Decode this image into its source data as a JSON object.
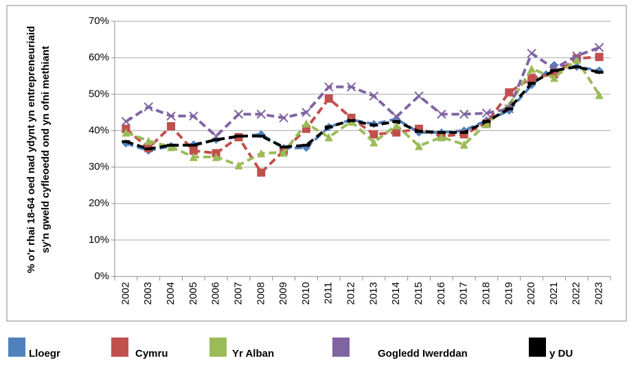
{
  "chart_data": {
    "type": "line",
    "ylabel": "% o'r rhai 18-64 oed nad ydynt yn entrepreneuriaid sy'n gweld cyfleoedd ond yn ofni methiant",
    "categories": [
      "2002",
      "2003",
      "2004",
      "2005",
      "2006",
      "2007",
      "2008",
      "2009",
      "2010",
      "2011",
      "2012",
      "2013",
      "2014",
      "2015",
      "2016",
      "2017",
      "2018",
      "2019",
      "2020",
      "2021",
      "2022",
      "2023"
    ],
    "series": [
      {
        "name": "Lloegr",
        "color": "#4f81bd",
        "marker": "diamond",
        "values": [
          36.5,
          34.5,
          35.8,
          36.2,
          37.5,
          38.3,
          39,
          35.2,
          35.3,
          41,
          43,
          41.8,
          43.2,
          39.5,
          39.5,
          40,
          42.8,
          45.5,
          52.5,
          58,
          57.5,
          56.5
        ]
      },
      {
        "name": "Cymru",
        "color": "#c0504d",
        "marker": "square",
        "values": [
          40.5,
          35.2,
          41.2,
          34.5,
          33.8,
          38.2,
          28.5,
          34.5,
          40.5,
          48.8,
          43.5,
          39,
          39.5,
          40.5,
          38.5,
          39,
          42,
          50.5,
          54.5,
          55.5,
          59.8,
          60.2
        ]
      },
      {
        "name": "Yr Alban",
        "color": "#9bbb59",
        "marker": "triangle",
        "values": [
          39.5,
          37.2,
          35.5,
          32.8,
          32.8,
          30.5,
          33.8,
          34,
          42,
          38.2,
          42.5,
          36.8,
          41.5,
          35.8,
          38.2,
          36.2,
          41.8,
          47,
          57,
          54.5,
          59.5,
          49.8
        ]
      },
      {
        "name": "Gogledd Iwerddan",
        "color": "#8064a2",
        "marker": "x",
        "values": [
          42.5,
          46.5,
          44,
          44,
          38.5,
          44.5,
          44.5,
          43.5,
          45,
          52,
          52,
          49.5,
          43.8,
          49.5,
          44.5,
          44.5,
          44.8,
          46,
          61.2,
          57,
          60.5,
          62.8
        ]
      },
      {
        "name": "y DU",
        "color": "#000000",
        "marker": "dash",
        "values": [
          37,
          35,
          36,
          36,
          37.5,
          38.5,
          38.5,
          35.5,
          36,
          41,
          42.8,
          41.5,
          42.5,
          39.8,
          39.5,
          39.5,
          42.5,
          46,
          53,
          56.5,
          57.5,
          56
        ]
      }
    ],
    "ylim": [
      0,
      70
    ],
    "yticks": [
      {
        "value": 0,
        "label": "0%"
      },
      {
        "value": 10,
        "label": "10%"
      },
      {
        "value": 20,
        "label": "20%"
      },
      {
        "value": 30,
        "label": "30%"
      },
      {
        "value": 40,
        "label": "40%"
      },
      {
        "value": 50,
        "label": "50%"
      },
      {
        "value": 60,
        "label": "60%"
      },
      {
        "value": 70,
        "label": "70%"
      }
    ],
    "grid": true
  }
}
